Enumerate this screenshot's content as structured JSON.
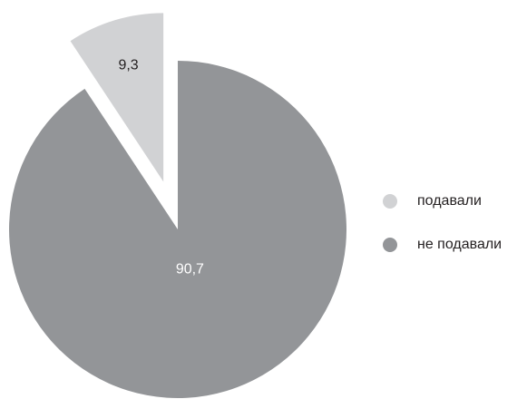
{
  "chart_data": {
    "type": "pie",
    "categories": [
      "подавали",
      "не подавали"
    ],
    "values": [
      9.3,
      90.7
    ],
    "value_labels": [
      "9,3",
      "90,7"
    ],
    "colors": [
      "#d1d2d4",
      "#939598"
    ],
    "label_colors": [
      "#231f20",
      "#ffffff"
    ],
    "explode": [
      true,
      false
    ],
    "legend": "right"
  }
}
